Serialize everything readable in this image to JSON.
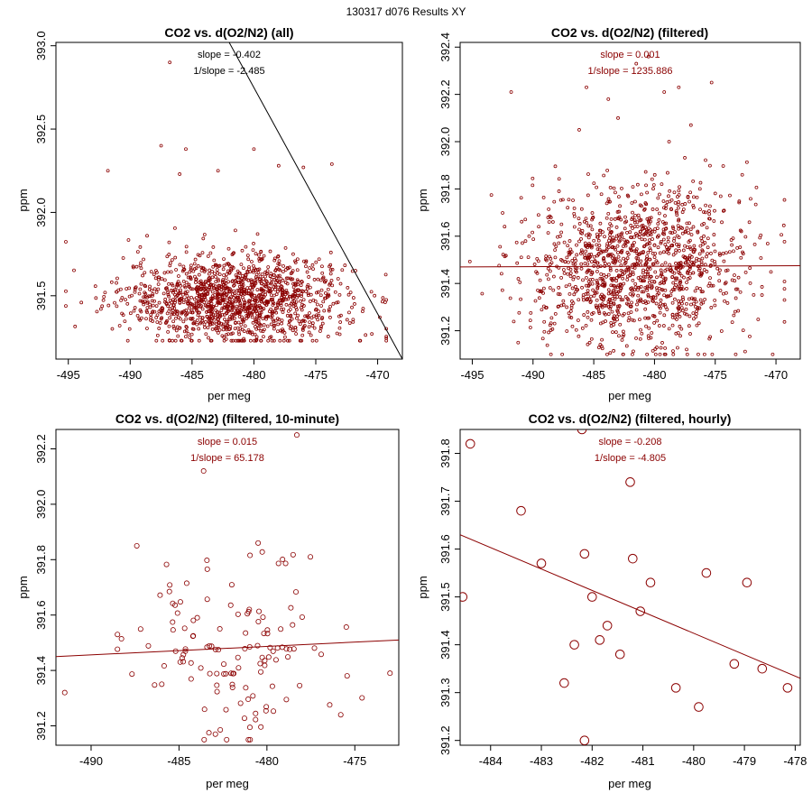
{
  "page_title": "130317   d076   Results XY",
  "colors": {
    "points": "#8b0000",
    "annotation": "#8b0000",
    "reference_line": "#000000"
  },
  "chart_data": [
    {
      "type": "scatter",
      "title": "CO2 vs. d(O2/N2) (all)",
      "xlabel": "per meg",
      "ylabel": "ppm",
      "xlim": [
        -496,
        -468
      ],
      "ylim": [
        391.12,
        393.02
      ],
      "x_ticks": [
        -495,
        -490,
        -485,
        -480,
        -475,
        -470
      ],
      "y_ticks": [
        391.5,
        392.0,
        392.5,
        393.0
      ],
      "annotations": [
        "slope = -0.402",
        "1/slope = -2.485"
      ],
      "annotation_color": "black",
      "marker_size": "small",
      "cloud": {
        "count": 1400,
        "x_mean": -481.5,
        "x_sd": 4.5,
        "y_mean": 391.48,
        "y_sd": 0.13,
        "x_range": [
          -495.2,
          -469.3
        ],
        "y_range": [
          391.23,
          392.1
        ]
      },
      "points": [
        {
          "x": -486.8,
          "y": 392.9
        },
        {
          "x": -487.5,
          "y": 392.4
        },
        {
          "x": -485.5,
          "y": 392.38
        },
        {
          "x": -480,
          "y": 392.38
        },
        {
          "x": -478,
          "y": 392.28
        },
        {
          "x": -476,
          "y": 392.27
        },
        {
          "x": -473.7,
          "y": 392.29
        },
        {
          "x": -491.8,
          "y": 392.25
        },
        {
          "x": -486,
          "y": 392.23
        },
        {
          "x": -482.9,
          "y": 392.25
        }
      ],
      "fit_line": {
        "slope": -0.402,
        "through": [
          -482,
          393.02
        ],
        "end": [
          -468,
          391.12
        ]
      }
    },
    {
      "type": "scatter",
      "title": "CO2 vs. d(O2/N2) (filtered)",
      "xlabel": "per meg",
      "ylabel": "ppm",
      "xlim": [
        -496,
        -468
      ],
      "ylim": [
        391.08,
        392.42
      ],
      "x_ticks": [
        -495,
        -490,
        -485,
        -480,
        -475,
        -470
      ],
      "y_ticks": [
        391.2,
        391.4,
        391.6,
        391.8,
        392.0,
        392.2,
        392.4
      ],
      "annotations": [
        "slope = 0.001",
        "1/slope = 1235.886"
      ],
      "annotation_color": "darkred",
      "marker_size": "small",
      "cloud": {
        "count": 1300,
        "x_mean": -481.5,
        "x_sd": 4.5,
        "y_mean": 391.47,
        "y_sd": 0.17,
        "x_range": [
          -495.2,
          -469.3
        ],
        "y_range": [
          391.1,
          392.0
        ]
      },
      "points": [
        {
          "x": -485.6,
          "y": 392.23
        },
        {
          "x": -483.8,
          "y": 392.18
        },
        {
          "x": -480.5,
          "y": 392.36
        },
        {
          "x": -479.2,
          "y": 392.21
        },
        {
          "x": -481.5,
          "y": 392.33
        },
        {
          "x": -475.3,
          "y": 392.25
        },
        {
          "x": -491.8,
          "y": 392.21
        },
        {
          "x": -478,
          "y": 392.23
        },
        {
          "x": -477,
          "y": 392.07
        },
        {
          "x": -486.2,
          "y": 392.05
        },
        {
          "x": -483,
          "y": 392.1
        }
      ],
      "fit_line": {
        "slope": 0.001,
        "through": [
          -496,
          391.47
        ],
        "end": [
          -468,
          391.475
        ]
      }
    },
    {
      "type": "scatter",
      "title": "CO2 vs. d(O2/N2) (filtered, 10-minute)",
      "xlabel": "per meg",
      "ylabel": "ppm",
      "xlim": [
        -492,
        -472.5
      ],
      "ylim": [
        391.13,
        392.27
      ],
      "x_ticks": [
        -490,
        -485,
        -480,
        -475
      ],
      "y_ticks": [
        391.2,
        391.4,
        391.6,
        391.8,
        392.0,
        392.2
      ],
      "annotations": [
        "slope = 0.015",
        "1/slope = 65.178"
      ],
      "annotation_color": "darkred",
      "marker_size": "medium",
      "cloud": {
        "count": 130,
        "x_mean": -481.7,
        "x_sd": 2.8,
        "y_mean": 391.47,
        "y_sd": 0.17,
        "x_range": [
          -488.5,
          -474.5
        ],
        "y_range": [
          391.15,
          391.9
        ]
      },
      "points": [
        {
          "x": -491.5,
          "y": 391.32
        },
        {
          "x": -487.4,
          "y": 391.85
        },
        {
          "x": -483.6,
          "y": 392.12
        },
        {
          "x": -478.3,
          "y": 392.25
        },
        {
          "x": -475.8,
          "y": 391.24
        },
        {
          "x": -473,
          "y": 391.39
        },
        {
          "x": -488.5,
          "y": 391.53
        },
        {
          "x": -480.5,
          "y": 391.86
        }
      ],
      "fit_line": {
        "slope": 0.015,
        "through": [
          -492,
          391.45
        ],
        "end": [
          -472.5,
          391.51
        ]
      }
    },
    {
      "type": "scatter",
      "title": "CO2 vs. d(O2/N2) (filtered, hourly)",
      "xlabel": "per meg",
      "ylabel": "ppm",
      "xlim": [
        -484.6,
        -477.9
      ],
      "ylim": [
        391.19,
        391.85
      ],
      "x_ticks": [
        -484,
        -483,
        -482,
        -481,
        -480,
        -479,
        -478
      ],
      "y_ticks": [
        391.2,
        391.3,
        391.4,
        391.5,
        391.6,
        391.7,
        391.8
      ],
      "annotations": [
        "slope = -0.208",
        "1/slope = -4.805"
      ],
      "annotation_color": "darkred",
      "marker_size": "large",
      "points": [
        {
          "x": -484.4,
          "y": 391.82
        },
        {
          "x": -482.2,
          "y": 391.85
        },
        {
          "x": -483.4,
          "y": 391.68
        },
        {
          "x": -481.25,
          "y": 391.74
        },
        {
          "x": -483.0,
          "y": 391.57
        },
        {
          "x": -482.15,
          "y": 391.59
        },
        {
          "x": -481.2,
          "y": 391.58
        },
        {
          "x": -479.75,
          "y": 391.55
        },
        {
          "x": -478.95,
          "y": 391.53
        },
        {
          "x": -484.55,
          "y": 391.5
        },
        {
          "x": -482.0,
          "y": 391.5
        },
        {
          "x": -480.85,
          "y": 391.53
        },
        {
          "x": -481.05,
          "y": 391.47
        },
        {
          "x": -481.7,
          "y": 391.44
        },
        {
          "x": -481.85,
          "y": 391.41
        },
        {
          "x": -482.35,
          "y": 391.4
        },
        {
          "x": -481.45,
          "y": 391.38
        },
        {
          "x": -482.55,
          "y": 391.32
        },
        {
          "x": -480.35,
          "y": 391.31
        },
        {
          "x": -479.2,
          "y": 391.36
        },
        {
          "x": -478.65,
          "y": 391.35
        },
        {
          "x": -478.15,
          "y": 391.31
        },
        {
          "x": -479.9,
          "y": 391.27
        },
        {
          "x": -482.15,
          "y": 391.2
        }
      ],
      "fit_line": {
        "slope": -0.208,
        "through": [
          -484.6,
          391.63
        ],
        "end": [
          -477.9,
          391.33
        ]
      }
    }
  ]
}
